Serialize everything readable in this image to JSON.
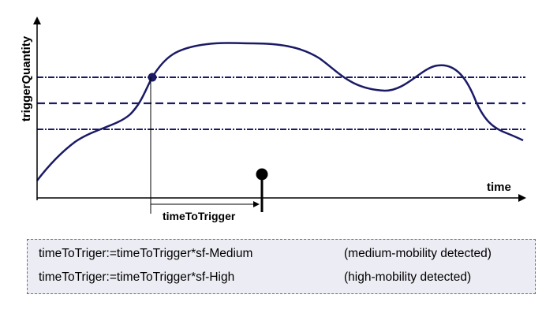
{
  "diagram": {
    "y_axis_label": "triggerQuantity",
    "x_axis_label": "time",
    "interval_label": "timeToTrigger",
    "colors": {
      "curve": "#1a1a66",
      "thresholds": "#1a1a66",
      "axes": "#000000"
    }
  },
  "formulas": [
    {
      "expression": "timeToTriger:=timeToTrigger*sf-Medium",
      "note": "(medium-mobility detected)"
    },
    {
      "expression": "timeToTriger:=timeToTrigger*sf-High",
      "note": "(high-mobility detected)"
    }
  ]
}
